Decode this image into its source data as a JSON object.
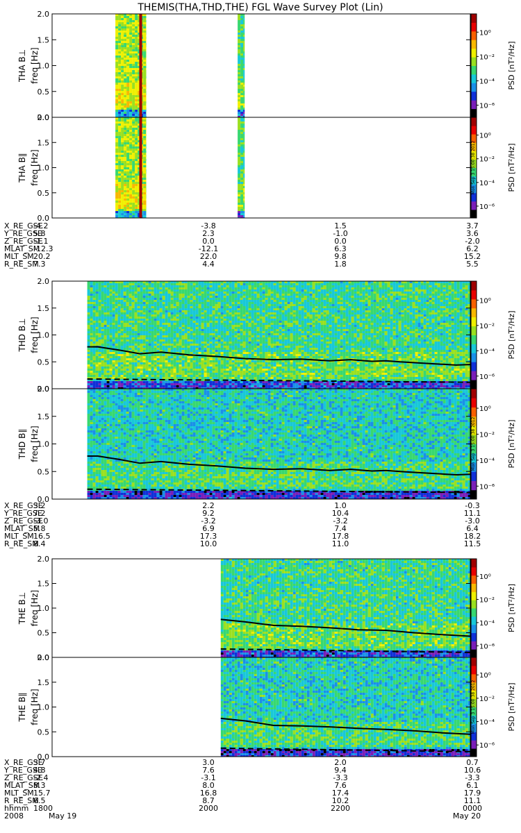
{
  "title": "THEMIS(THA,THD,THE) FGL Wave Survey Plot (Lin)",
  "timestamp": "Mon Sep  3 15:00:38 2012",
  "colors": {
    "background": "#ffffff",
    "axis": "#000000",
    "colormap": [
      "#000000",
      "#7a1fb8",
      "#1030d8",
      "#1a90e8",
      "#18c8d8",
      "#38d870",
      "#9ae020",
      "#f0f000",
      "#f8b800",
      "#f86000",
      "#e80000",
      "#a00000"
    ]
  },
  "colorbar": {
    "label": "PSD",
    "unit": "[nT²/Hz]",
    "tick_labels": [
      "10⁰",
      "10⁻²",
      "10⁻⁴",
      "10⁻⁶"
    ],
    "tick_exponents": [
      0,
      -2,
      -4,
      -6
    ],
    "range_exponent": [
      -7,
      1.5
    ]
  },
  "chart_data": [
    {
      "type": "heatmap",
      "probe": "THA",
      "panels": [
        {
          "component": "B⊥",
          "label": "THA B⊥",
          "ylabel": "freq [Hz]",
          "ylim": [
            0,
            2.0
          ],
          "yticks": [
            "0.0",
            "0.5",
            "1.0",
            "1.5",
            "2.0"
          ],
          "coverage_minutes": [
            [
              -145,
              -101
            ],
            [
              29,
              39
            ]
          ],
          "spike_minutes": -109,
          "mean_level": -3.0
        },
        {
          "component": "B∥",
          "label": "THA B∥",
          "ylabel": "freq [Hz]",
          "ylim": [
            0,
            2.0
          ],
          "yticks": [
            "0.0",
            "0.5",
            "1.0",
            "1.5",
            "2.0"
          ],
          "coverage_minutes": [
            [
              -145,
              -101
            ],
            [
              29,
              39
            ]
          ],
          "spike_minutes": -109,
          "mean_level": -3.0
        }
      ],
      "ephemeris": {
        "rows": [
          {
            "label": "X_RE_GSE",
            "values": [
              "-4.2",
              "-3.8",
              "1.5",
              "3.7"
            ]
          },
          {
            "label": "Y_RE_GSE",
            "values": [
              "5.8",
              "2.3",
              "-1.0",
              "3.6"
            ]
          },
          {
            "label": "Z_RE_GSE",
            "values": [
              "-1.1",
              "0.0",
              "0.0",
              "-2.0"
            ]
          },
          {
            "label": "MLAT_SM",
            "values": [
              "-12.3",
              "-12.1",
              "6.3",
              "6.2"
            ]
          },
          {
            "label": "MLT_SM",
            "values": [
              "20.2",
              "22.0",
              "9.8",
              "15.2"
            ]
          },
          {
            "label": "R_RE_SM",
            "values": [
              "7.3",
              "4.4",
              "1.8",
              "5.5"
            ]
          }
        ]
      }
    },
    {
      "type": "heatmap",
      "probe": "THD",
      "panels": [
        {
          "component": "B⊥",
          "label": "THD B⊥",
          "ylabel": "freq [Hz]",
          "ylim": [
            0,
            2.0
          ],
          "yticks": [
            "0.0",
            "0.5",
            "1.0",
            "1.5",
            "2.0"
          ],
          "coverage_minutes": [
            [
              -185,
              360
            ]
          ],
          "mean_level": -3.3,
          "lines": [
            {
              "style": "solid",
              "x": [
                -185,
                -170,
                -140,
                -110,
                -80,
                -40,
                0,
                40,
                80,
                120,
                160,
                190,
                220,
                240,
                260,
                300,
                340,
                360
              ],
              "y": [
                0.78,
                0.78,
                0.72,
                0.65,
                0.68,
                0.63,
                0.6,
                0.56,
                0.54,
                0.55,
                0.52,
                0.54,
                0.51,
                0.52,
                0.5,
                0.47,
                0.44,
                0.45
              ]
            },
            {
              "style": "dashed",
              "x": [
                -185,
                360
              ],
              "y": [
                0.18,
                0.12
              ]
            }
          ]
        },
        {
          "component": "B∥",
          "label": "THD B∥",
          "ylabel": "freq [Hz]",
          "ylim": [
            0,
            2.0
          ],
          "yticks": [
            "0.0",
            "0.5",
            "1.0",
            "1.5",
            "2.0"
          ],
          "coverage_minutes": [
            [
              -185,
              360
            ]
          ],
          "mean_level": -3.6,
          "lines": [
            {
              "style": "solid",
              "x": [
                -185,
                -170,
                -140,
                -110,
                -80,
                -40,
                0,
                40,
                80,
                120,
                160,
                190,
                220,
                240,
                260,
                300,
                340,
                360
              ],
              "y": [
                0.78,
                0.78,
                0.72,
                0.65,
                0.68,
                0.63,
                0.6,
                0.56,
                0.54,
                0.55,
                0.52,
                0.54,
                0.51,
                0.52,
                0.5,
                0.47,
                0.44,
                0.45
              ]
            },
            {
              "style": "dashed",
              "x": [
                -185,
                360
              ],
              "y": [
                0.18,
                0.12
              ]
            }
          ]
        }
      ],
      "ephemeris": {
        "rows": [
          {
            "label": "X_RE_GSE",
            "values": [
              "3.2",
              "2.2",
              "1.0",
              "-0.3"
            ]
          },
          {
            "label": "Y_RE_GSE",
            "values": [
              "7.2",
              "9.2",
              "10.4",
              "11.1"
            ]
          },
          {
            "label": "Z_RE_GSE",
            "values": [
              "-3.0",
              "-3.2",
              "-3.2",
              "-3.0"
            ]
          },
          {
            "label": "MLAT_SM",
            "values": [
              "5.8",
              "6.9",
              "7.4",
              "6.4"
            ]
          },
          {
            "label": "MLT_SM",
            "values": [
              "16.5",
              "17.3",
              "17.8",
              "18.2"
            ]
          },
          {
            "label": "R_RE_SM",
            "values": [
              "8.4",
              "10.0",
              "11.0",
              "11.5"
            ]
          }
        ]
      }
    },
    {
      "type": "heatmap",
      "probe": "THE",
      "panels": [
        {
          "component": "B⊥",
          "label": "THE B⊥",
          "ylabel": "freq [Hz]",
          "ylim": [
            0,
            2.0
          ],
          "yticks": [
            "0.0",
            "0.5",
            "1.0",
            "1.5",
            "2.0"
          ],
          "coverage_minutes": [
            [
              5,
              360
            ]
          ],
          "mean_level": -3.3,
          "lines": [
            {
              "style": "solid",
              "x": [
                5,
                40,
                80,
                120,
                160,
                200,
                240,
                280,
                320,
                360
              ],
              "y": [
                0.77,
                0.72,
                0.65,
                0.63,
                0.6,
                0.56,
                0.55,
                0.5,
                0.46,
                0.43
              ]
            },
            {
              "style": "dashed",
              "x": [
                5,
                360
              ],
              "y": [
                0.17,
                0.1
              ]
            }
          ]
        },
        {
          "component": "B∥",
          "label": "THE B∥",
          "ylabel": "freq [Hz]",
          "ylim": [
            0,
            2.0
          ],
          "yticks": [
            "0.0",
            "0.5",
            "1.0",
            "1.5",
            "2.0"
          ],
          "coverage_minutes": [
            [
              5,
              360
            ]
          ],
          "mean_level": -3.6,
          "lines": [
            {
              "style": "solid",
              "x": [
                5,
                40,
                80,
                120,
                160,
                200,
                240,
                280,
                320,
                360
              ],
              "y": [
                0.77,
                0.72,
                0.63,
                0.62,
                0.6,
                0.57,
                0.55,
                0.52,
                0.48,
                0.45
              ]
            },
            {
              "style": "dashed",
              "x": [
                5,
                360
              ],
              "y": [
                0.17,
                0.1
              ]
            }
          ]
        }
      ],
      "ephemeris": {
        "rows": [
          {
            "label": "X_RE_GSE",
            "values": [
              "3.7",
              "3.0",
              "2.0",
              "0.7"
            ]
          },
          {
            "label": "Y_RE_GSE",
            "values": [
              "4.8",
              "7.6",
              "9.4",
              "10.6"
            ]
          },
          {
            "label": "Z_RE_GSE",
            "values": [
              "-2.4",
              "-3.1",
              "-3.3",
              "-3.3"
            ]
          },
          {
            "label": "MLAT_SM",
            "values": [
              "8.3",
              "8.0",
              "7.6",
              "6.1"
            ]
          },
          {
            "label": "MLT_SM",
            "values": [
              "15.7",
              "16.8",
              "17.4",
              "17.9"
            ]
          },
          {
            "label": "R_RE_SM",
            "values": [
              "6.5",
              "8.7",
              "10.2",
              "11.1"
            ]
          }
        ]
      }
    }
  ],
  "time_axis": {
    "row_label": "hhmm",
    "tick_labels": [
      "1800",
      "2000",
      "2200",
      "0000"
    ],
    "date_row": [
      "2008",
      "May 19",
      "May 20"
    ],
    "range": [
      "2008-05-19 18:00",
      "2008-05-20 00:00"
    ]
  }
}
